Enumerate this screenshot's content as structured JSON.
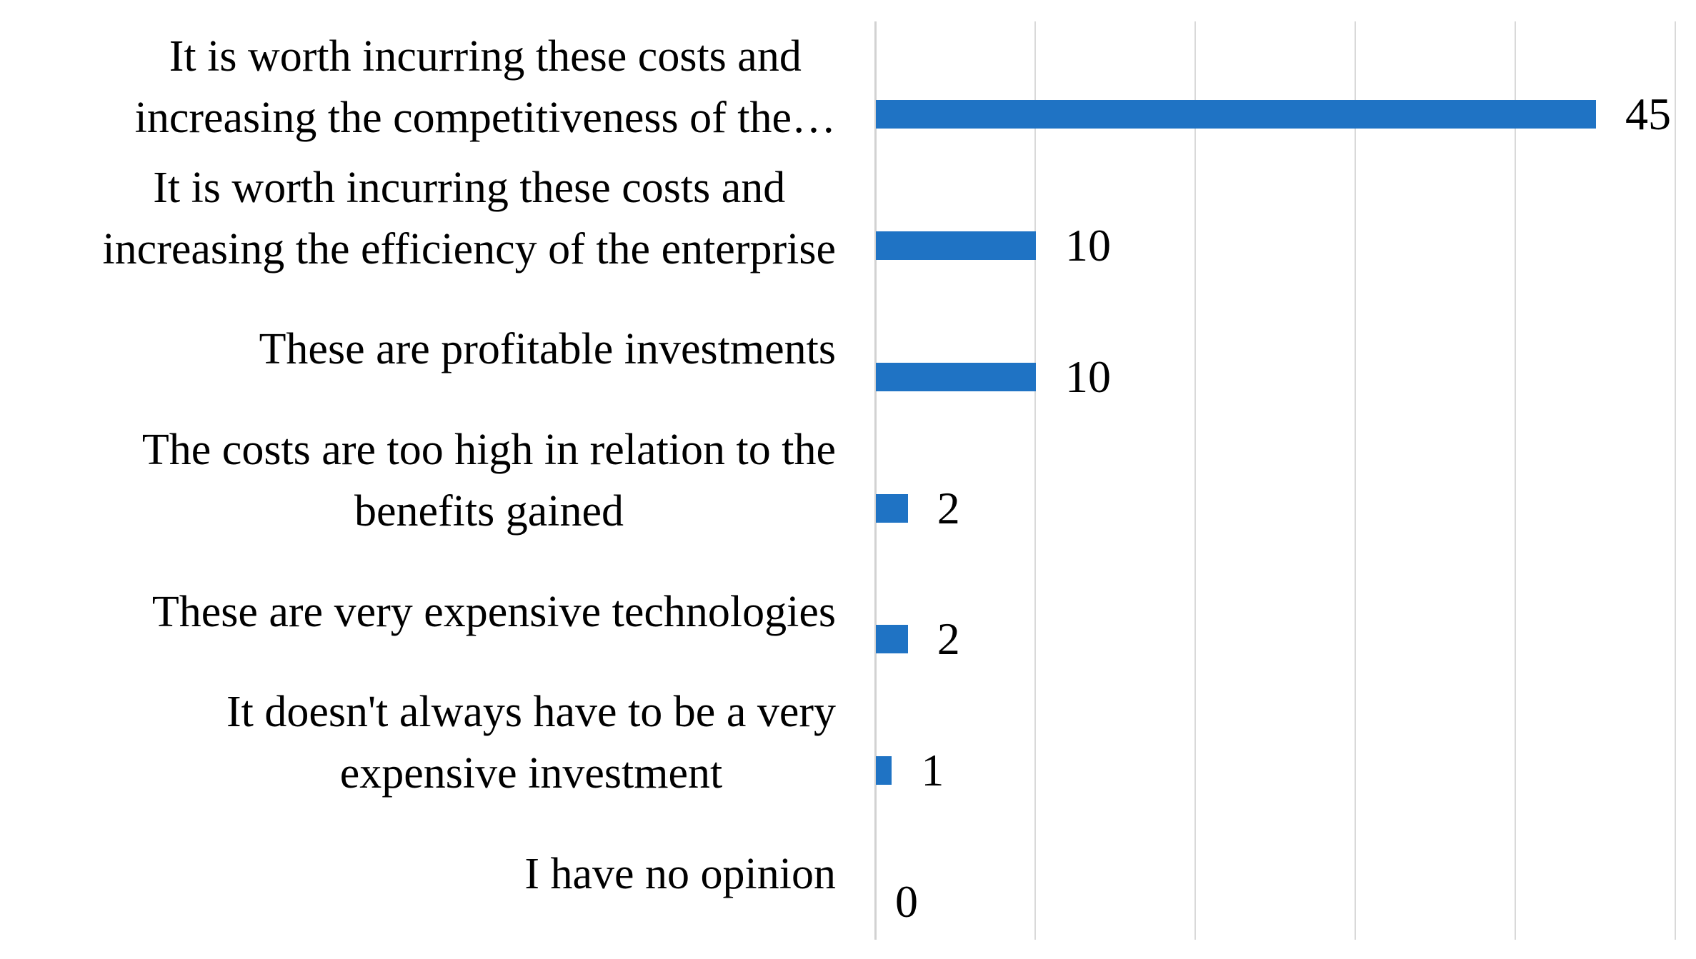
{
  "chart_data": {
    "type": "bar",
    "orientation": "horizontal",
    "title": "",
    "xlabel": "",
    "ylabel": "",
    "xlim": [
      0,
      50
    ],
    "gridline_interval": 10,
    "grid": true,
    "legend_position": "none",
    "bar_color": "#1f73c4",
    "gridline_color": "#d9d9d9",
    "axis_line_color": "#d2d2d2",
    "text_color": "#000000",
    "categories": [
      "It is worth incurring these costs and increasing the competitiveness of the…",
      "It is worth incurring these costs and increasing the efficiency of the enterprise",
      "These are profitable investments",
      "The costs are too high in relation to the benefits gained",
      "These are very expensive technologies",
      "It doesn't always have to be a very expensive investment",
      "I have no opinion"
    ],
    "category_display_lines": [
      [
        "It is worth incurring these costs and",
        "increasing the competitiveness of the…"
      ],
      [
        "It is worth incurring these costs and",
        "increasing the efficiency of the enterprise"
      ],
      [
        "These are profitable investments"
      ],
      [
        "The costs are too high in relation to the",
        "benefits gained"
      ],
      [
        "These are very expensive technologies"
      ],
      [
        "It doesn't always have to be a very",
        "expensive investment"
      ],
      [
        "I have no opinion"
      ]
    ],
    "values": [
      45,
      10,
      10,
      2,
      2,
      1,
      0
    ],
    "value_labels": [
      "45",
      "10",
      "10",
      "2",
      "2",
      "1",
      "0"
    ]
  }
}
